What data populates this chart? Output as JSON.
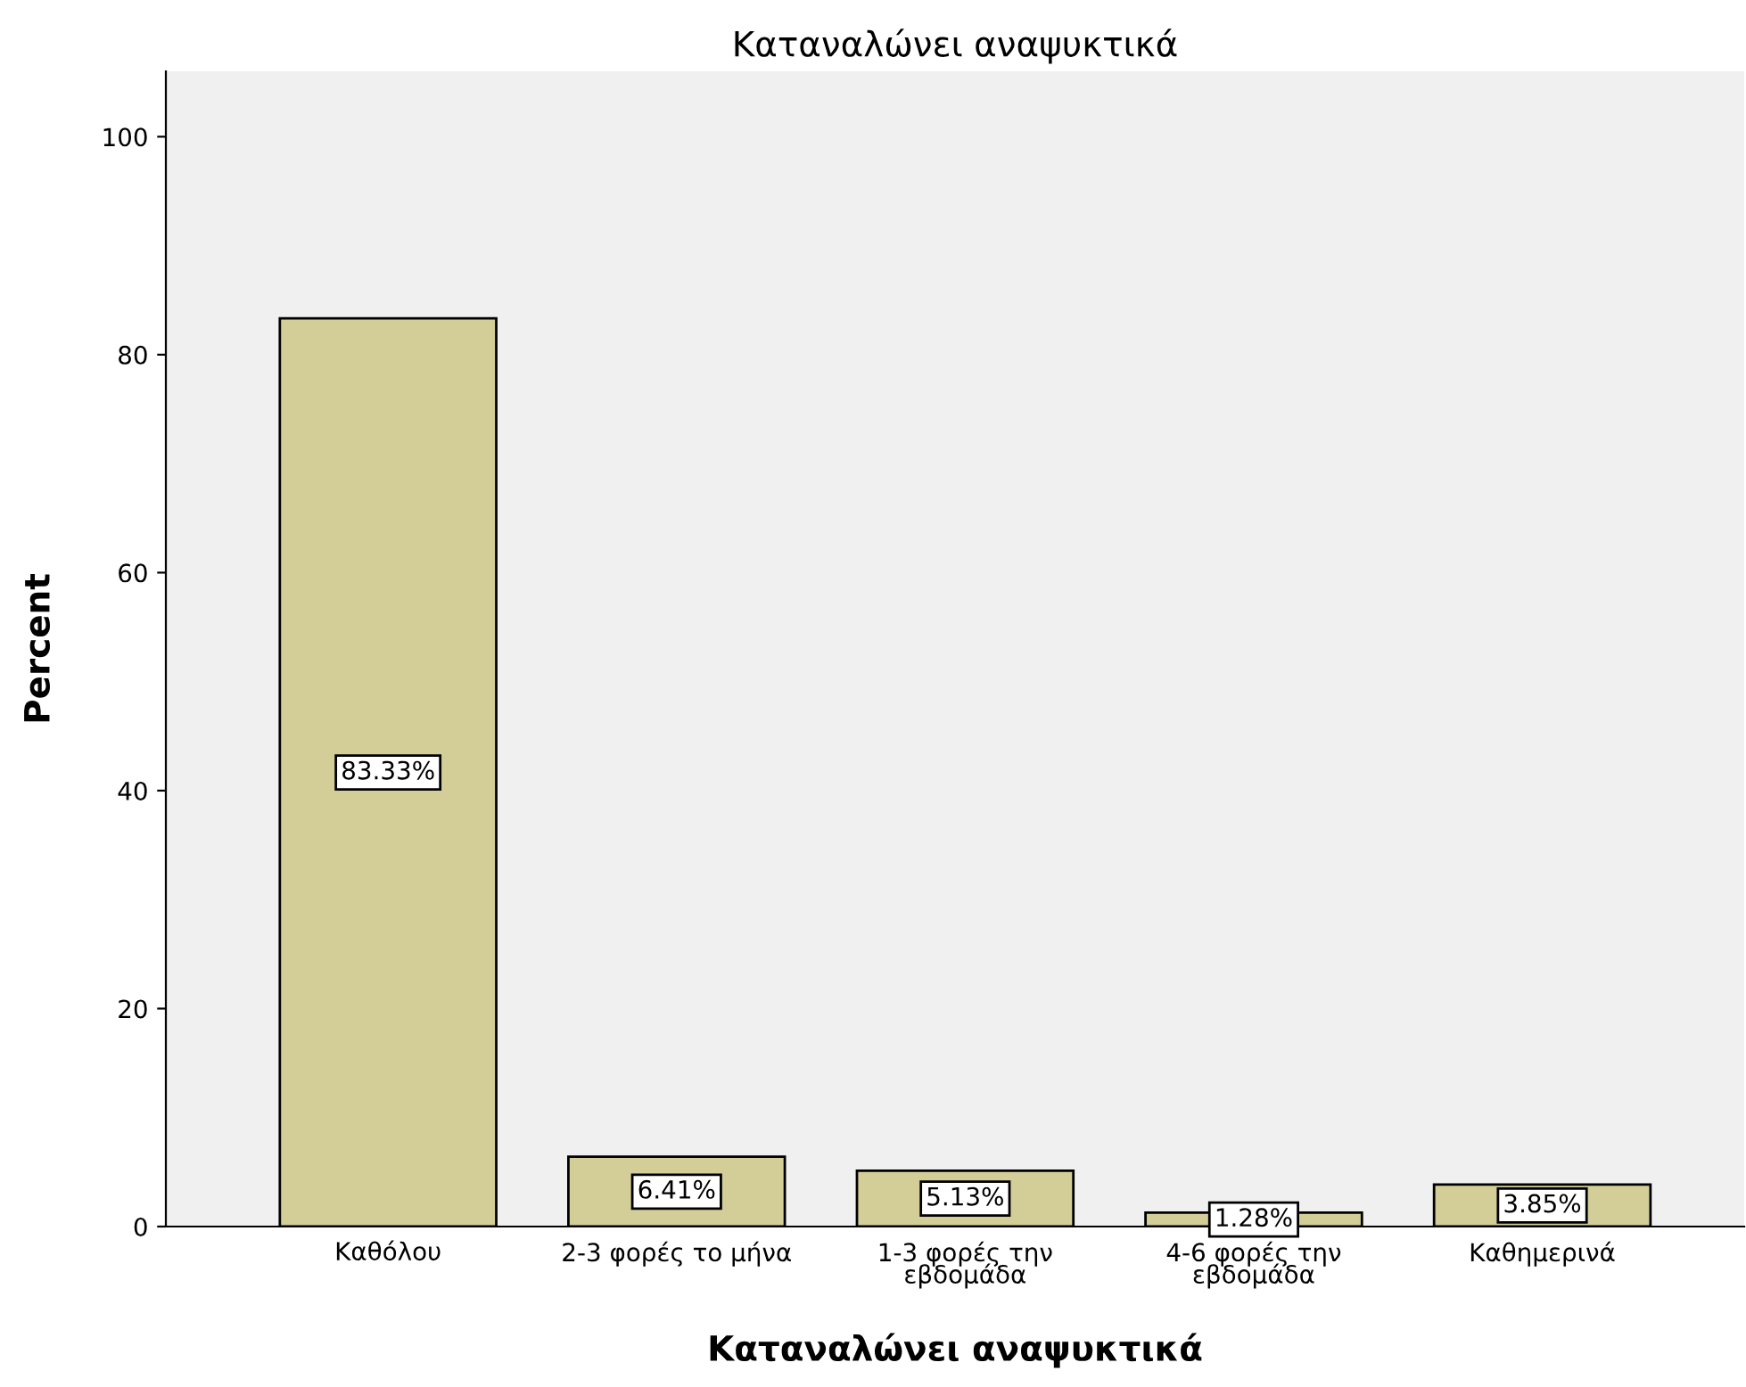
{
  "chart_data": {
    "type": "bar",
    "title": "Καταναλώνει αναψυκτικά",
    "xlabel": "Καταναλώνει αναψυκτικά",
    "ylabel": "Percent",
    "categories": [
      "Καθόλου",
      "2-3 φορές το μήνα",
      "1-3 φορές την\nεβδομάδα",
      "4-6 φορές την\nεβδομάδα",
      "Καθημερινά"
    ],
    "values": [
      83.33,
      6.41,
      5.13,
      1.28,
      3.85
    ],
    "color": "#d3ce97",
    "value_labels": [
      "83.33%",
      "6.41%",
      "5.13%",
      "1.28%",
      "3.85%"
    ],
    "ylim": [
      0,
      106
    ],
    "yticks": [
      0,
      20,
      40,
      60,
      80,
      100
    ],
    "grid": false,
    "legend": false
  }
}
